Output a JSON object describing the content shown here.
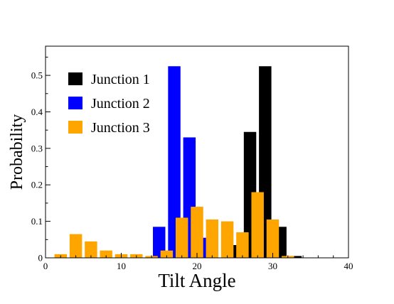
{
  "chart_data": {
    "type": "bar",
    "xlabel": "Tilt Angle",
    "ylabel": "Probability",
    "xlim": [
      0,
      40
    ],
    "ylim": [
      0,
      0.58
    ],
    "x_ticks": [
      0,
      10,
      20,
      30,
      40
    ],
    "y_ticks": [
      0,
      0.1,
      0.2,
      0.3,
      0.4,
      0.5
    ],
    "y_tick_labels": [
      "0",
      "0.1",
      "0.2",
      "0.3",
      "0.4",
      "0.5"
    ],
    "bin_width": 2,
    "legend_position": "top-left",
    "grid": false,
    "series": [
      {
        "name": "Junction 1",
        "color": "#000000",
        "x": [
          25,
          27,
          29,
          31,
          33
        ],
        "values": [
          0.035,
          0.345,
          0.525,
          0.085,
          0.005
        ]
      },
      {
        "name": "Junction 2",
        "color": "#0000ff",
        "x": [
          15,
          17,
          19,
          21
        ],
        "values": [
          0.085,
          0.525,
          0.33,
          0.055
        ]
      },
      {
        "name": "Junction 3",
        "color": "#ffa500",
        "x": [
          2,
          4,
          6,
          8,
          10,
          12,
          14,
          16,
          18,
          20,
          22,
          24,
          26,
          28,
          30,
          32
        ],
        "values": [
          0.01,
          0.065,
          0.045,
          0.02,
          0.01,
          0.01,
          0.005,
          0.02,
          0.11,
          0.14,
          0.105,
          0.1,
          0.07,
          0.18,
          0.105,
          0.005
        ]
      }
    ]
  }
}
